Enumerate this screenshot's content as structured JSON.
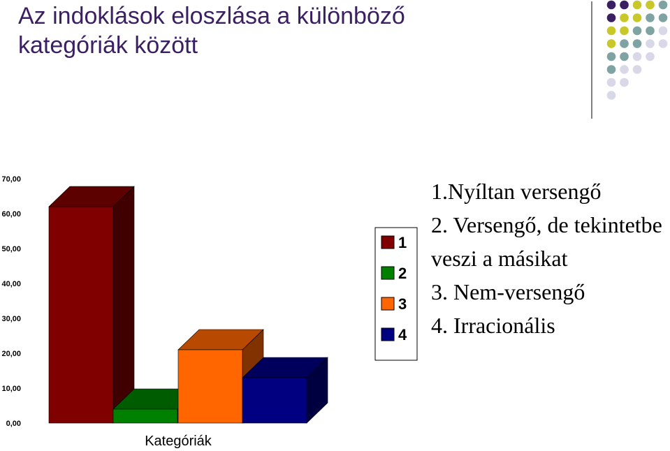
{
  "slide": {
    "title_line1": "Az indoklások eloszlása a különböző",
    "title_line2": "kategóriák között",
    "description": [
      "1.Nyíltan versengő",
      "2. Versengő, de tekintetbe veszi a másikat",
      "3. Nem-versengő",
      "4. Irracionális"
    ]
  },
  "chart_data": {
    "type": "bar",
    "title": "",
    "xlabel": "Kategóriák",
    "ylabel": "",
    "ylim": [
      0,
      70
    ],
    "y_ticks": [
      "0,00",
      "10,00",
      "20,00",
      "30,00",
      "40,00",
      "50,00",
      "60,00",
      "70,00"
    ],
    "series": [
      {
        "name": "1",
        "value": 62,
        "color": "#800000"
      },
      {
        "name": "2",
        "value": 4,
        "color": "#008000"
      },
      {
        "name": "3",
        "value": 21,
        "color": "#ff6600"
      },
      {
        "name": "4",
        "value": 13,
        "color": "#000080"
      }
    ],
    "legend_position": "right",
    "grid": false
  },
  "decoration": {
    "dot_colors": [
      "#3a1f63",
      "#c8c82a",
      "#7fa3a3",
      "#d8d8e8"
    ]
  }
}
